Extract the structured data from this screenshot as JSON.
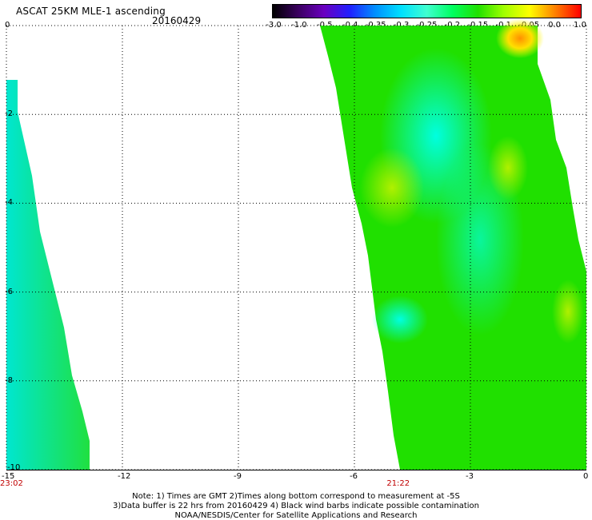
{
  "header": {
    "title": "ASCAT 25KM MLE-1 ascending",
    "date": "20160429"
  },
  "colorbar": {
    "labels": [
      "-3.0",
      "-1.0",
      "-0.5",
      "-0.4",
      "-0.35",
      "-0.3",
      "-0.25",
      "-0.2",
      "-0.15",
      "-0.1",
      "-0.05",
      "0.0",
      "1.0"
    ],
    "colors": [
      "#000000",
      "#3a0060",
      "#6a00c0",
      "#2020ff",
      "#0090ff",
      "#00e0ff",
      "#40ffd0",
      "#00ff60",
      "#20e000",
      "#a0ff00",
      "#ffff00",
      "#ff8000",
      "#ff0000"
    ]
  },
  "axes": {
    "x_ticks": [
      "-15",
      "-12",
      "-9",
      "-6",
      "-3",
      "0"
    ],
    "y_ticks": [
      "0",
      "-2",
      "-4",
      "-6",
      "-8",
      "-10"
    ],
    "x_range": [
      -15,
      0
    ],
    "y_range": [
      0,
      -10
    ]
  },
  "pass_times": [
    {
      "label": "23:02",
      "lon": -15
    },
    {
      "label": "21:22",
      "lon": -5
    }
  ],
  "footer": {
    "note_line1": "Note: 1) Times are GMT 2)Times along bottom correspond to measurement at -5S",
    "note_line2": "3)Data buffer is 22 hrs from 20160429 4) Black wind barbs indicate possible contamination",
    "note_line3": "NOAA/NESDIS/Center for Satellite Applications and Research"
  }
}
